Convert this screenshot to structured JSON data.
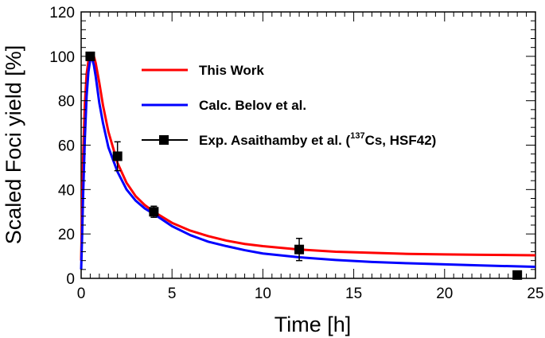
{
  "chart_data": {
    "type": "line",
    "xlabel": "Time [h]",
    "ylabel": "Scaled Foci yield [%]",
    "xlim": [
      0,
      25
    ],
    "ylim": [
      0,
      120
    ],
    "x_ticks": [
      0,
      5,
      10,
      15,
      20,
      25
    ],
    "y_ticks": [
      0,
      20,
      40,
      60,
      80,
      100,
      120
    ],
    "grid": false,
    "legend_position": "top-right",
    "series": [
      {
        "name": "This Work",
        "color": "#ff0000",
        "x": [
          0,
          0.05,
          0.1,
          0.2,
          0.3,
          0.4,
          0.5,
          0.6,
          0.7,
          0.8,
          1.0,
          1.2,
          1.5,
          2.0,
          2.5,
          3.0,
          3.5,
          4.0,
          5.0,
          6.0,
          7.0,
          8.0,
          9.0,
          10.0,
          12.0,
          14.0,
          16.0,
          18.0,
          20.0,
          22.0,
          25.0
        ],
        "y": [
          8,
          30,
          52,
          78,
          92,
          98,
          100.5,
          101,
          100,
          97,
          88,
          78,
          66,
          52,
          43,
          37,
          33,
          30,
          25,
          21.5,
          19,
          17,
          15.5,
          14.5,
          13,
          12,
          11.5,
          11,
          10.8,
          10.6,
          10.4
        ]
      },
      {
        "name": "Calc. Belov et al.",
        "color": "#0000ff",
        "x": [
          0,
          0.05,
          0.1,
          0.2,
          0.3,
          0.4,
          0.5,
          0.6,
          0.7,
          0.8,
          1.0,
          1.2,
          1.5,
          2.0,
          2.5,
          3.0,
          3.5,
          4.0,
          5.0,
          6.0,
          7.0,
          8.0,
          9.0,
          10.0,
          12.0,
          14.0,
          16.0,
          18.0,
          20.0,
          22.0,
          25.0
        ],
        "y": [
          4,
          18,
          35,
          62,
          82,
          93,
          98.5,
          99,
          96,
          91,
          79,
          70,
          59,
          48,
          40,
          35,
          31.5,
          29,
          23.5,
          19.5,
          16.5,
          14.5,
          12.7,
          11.2,
          9.5,
          8.3,
          7.4,
          6.8,
          6.3,
          5.8,
          5.2
        ]
      },
      {
        "name": "Exp. Asaithamby et al. (",
        "name_sup": "137",
        "name_suffix": "Cs, HSF42)",
        "color": "#000000",
        "marker": "square",
        "x": [
          0.5,
          2.0,
          4.0,
          12.0,
          24.0
        ],
        "y": [
          100,
          55,
          30,
          13,
          1.5
        ],
        "yerr": [
          1,
          6.5,
          2.5,
          5,
          1
        ]
      }
    ]
  }
}
